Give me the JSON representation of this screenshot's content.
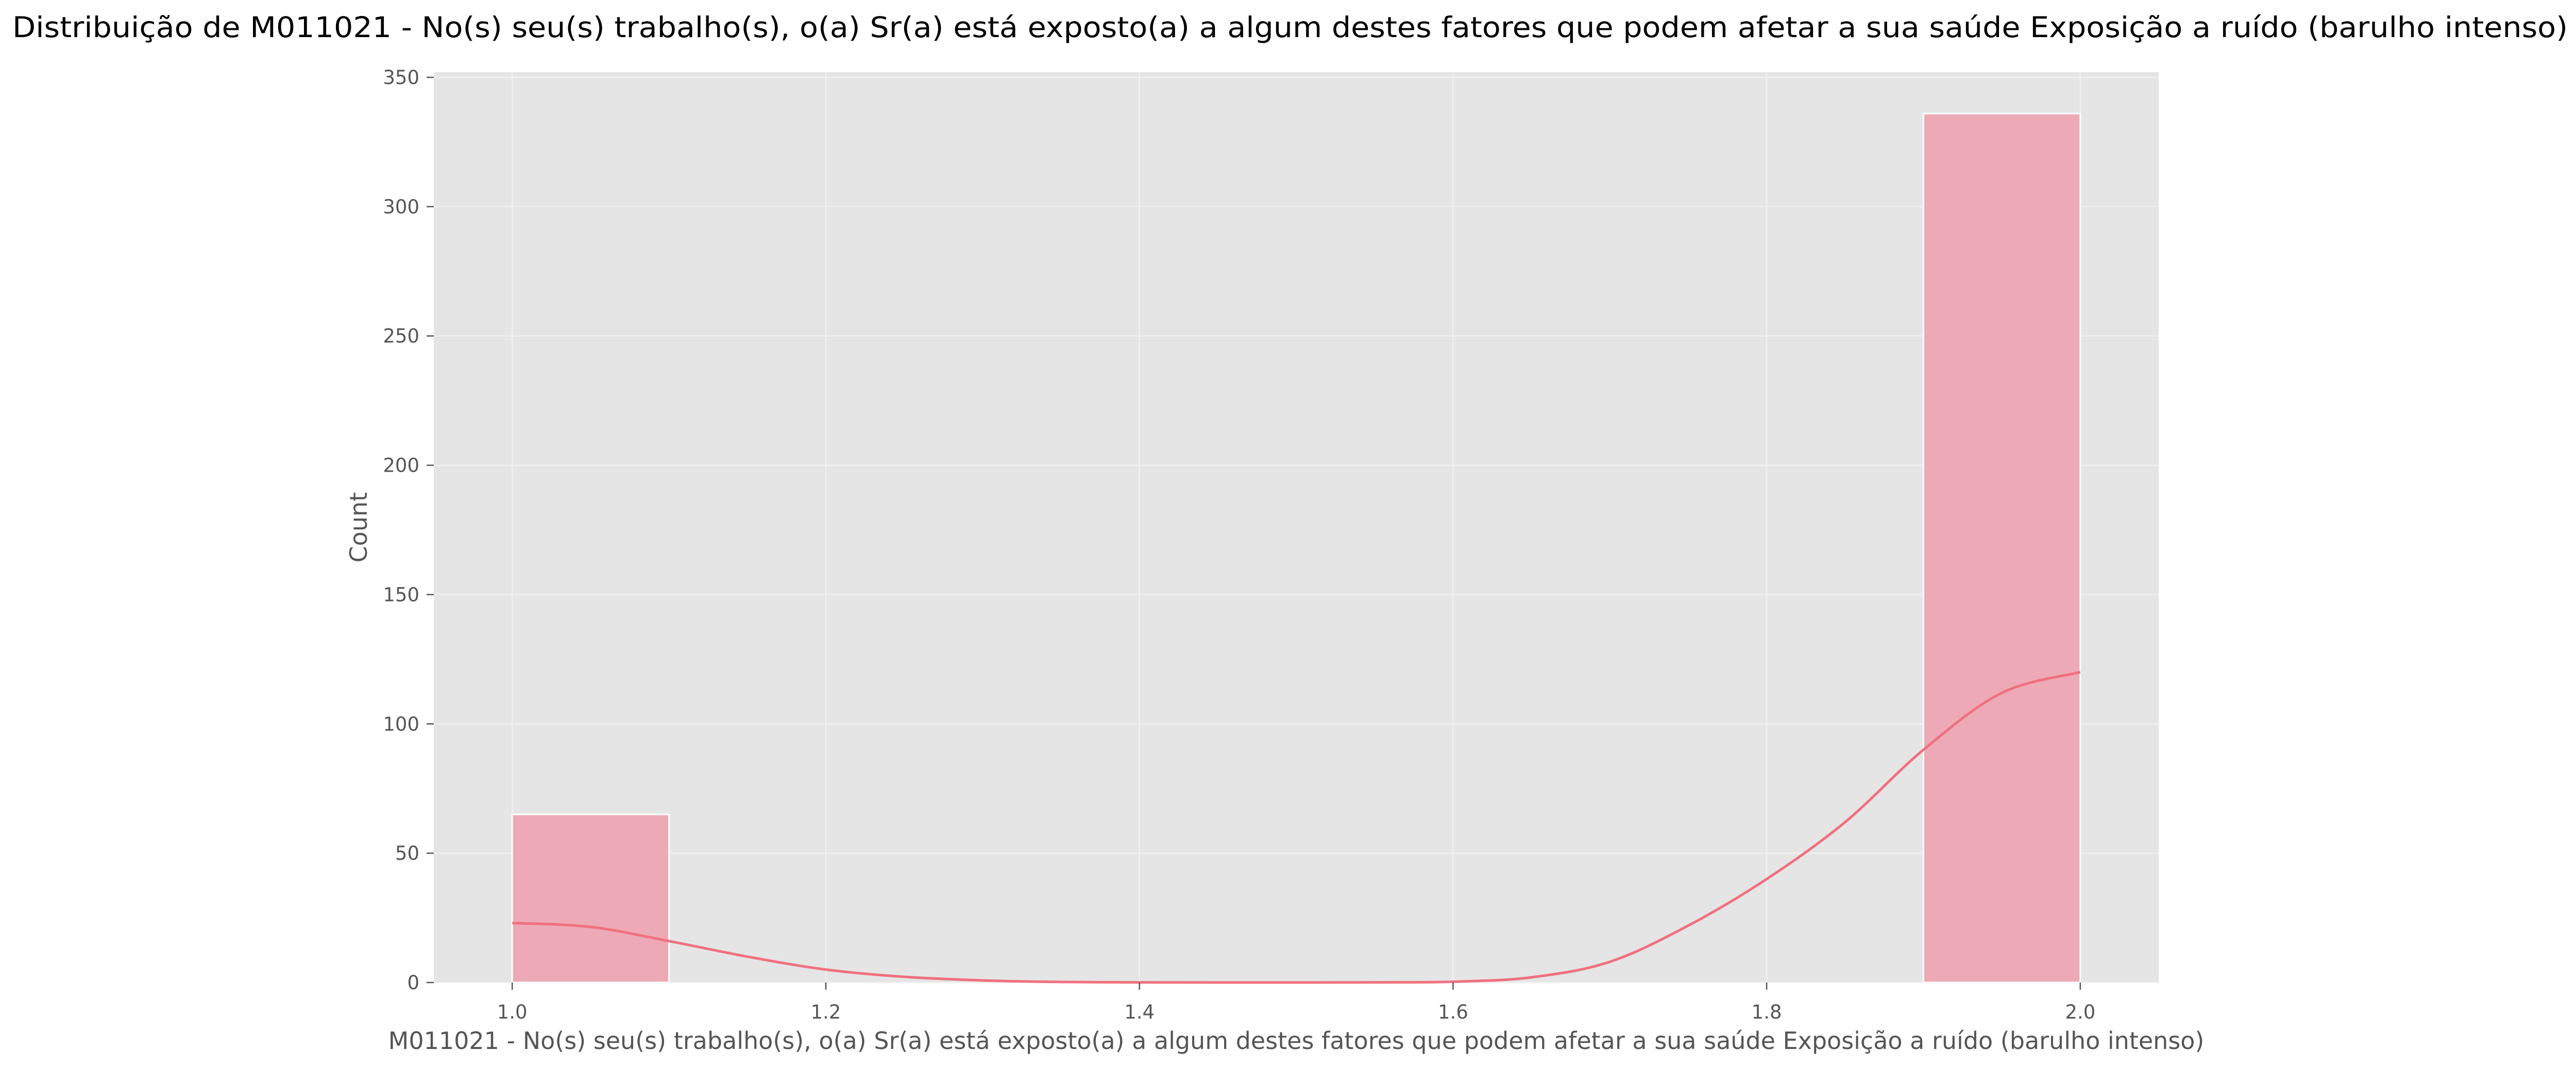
{
  "chart_data": {
    "type": "bar",
    "title": "Distribuição de M011021 - No(s) seu(s) trabalho(s), o(a) Sr(a) está exposto(a) a algum destes fatores que podem afetar a sua saúde Exposição a ruído (barulho intenso)",
    "xlabel": "M011021 - No(s) seu(s) trabalho(s), o(a) Sr(a) está exposto(a) a algum destes fatores que podem afetar a sua saúde Exposição a ruído (barulho intenso)",
    "ylabel": "Count",
    "xlim": [
      0.95,
      2.05
    ],
    "ylim": [
      0,
      352
    ],
    "x_ticks": [
      1.0,
      1.2,
      1.4,
      1.6,
      1.8,
      2.0
    ],
    "x_tick_labels": [
      "1.0",
      "1.2",
      "1.4",
      "1.6",
      "1.8",
      "2.0"
    ],
    "y_ticks": [
      0,
      50,
      100,
      150,
      200,
      250,
      300,
      350
    ],
    "y_tick_labels": [
      "0",
      "50",
      "100",
      "150",
      "200",
      "250",
      "300",
      "350"
    ],
    "grid": true,
    "bins": [
      {
        "x0": 1.0,
        "x1": 1.1,
        "count": 65
      },
      {
        "x0": 1.1,
        "x1": 1.2,
        "count": 0
      },
      {
        "x0": 1.2,
        "x1": 1.3,
        "count": 0
      },
      {
        "x0": 1.3,
        "x1": 1.4,
        "count": 0
      },
      {
        "x0": 1.4,
        "x1": 1.5,
        "count": 0
      },
      {
        "x0": 1.5,
        "x1": 1.6,
        "count": 0
      },
      {
        "x0": 1.6,
        "x1": 1.7,
        "count": 0
      },
      {
        "x0": 1.7,
        "x1": 1.8,
        "count": 0
      },
      {
        "x0": 1.8,
        "x1": 1.9,
        "count": 0
      },
      {
        "x0": 1.9,
        "x1": 2.0,
        "count": 336
      }
    ],
    "kde": {
      "x": [
        1.0,
        1.05,
        1.1,
        1.15,
        1.2,
        1.25,
        1.3,
        1.35,
        1.4,
        1.45,
        1.5,
        1.55,
        1.6,
        1.65,
        1.7,
        1.75,
        1.8,
        1.85,
        1.9,
        1.95,
        2.0
      ],
      "y": [
        23,
        21.5,
        16,
        10,
        5,
        2.2,
        0.8,
        0.2,
        0.05,
        0.01,
        0.01,
        0.05,
        0.3,
        2,
        8,
        22,
        40,
        62,
        90,
        112,
        120
      ]
    },
    "colors": {
      "plot_background": "#e5e5e5",
      "bar_fill": "#eea9b6",
      "kde_line": "#f0707f",
      "grid": "#f0f0f0",
      "text": "#555555",
      "title": "#000000"
    }
  }
}
